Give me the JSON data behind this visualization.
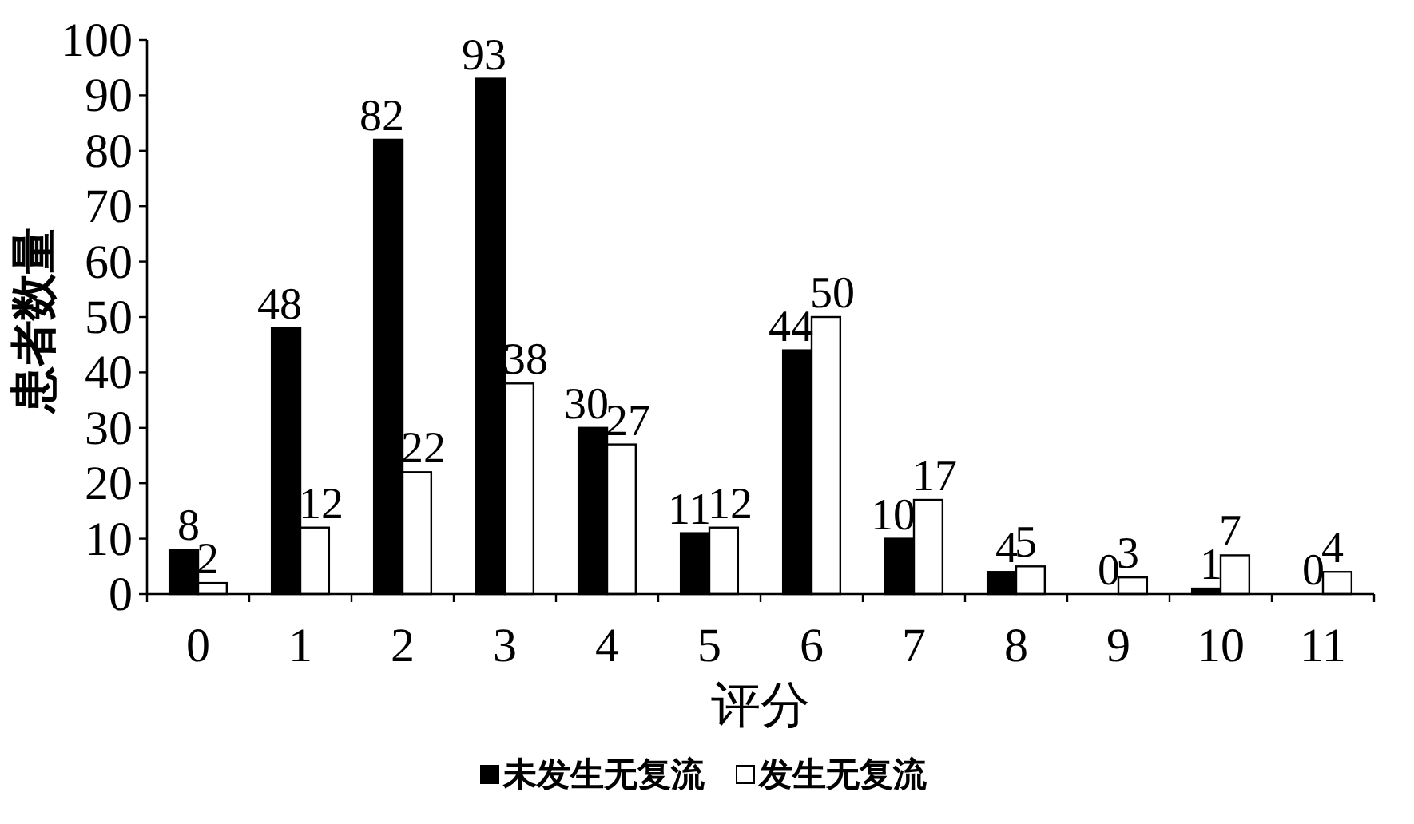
{
  "chart_data": {
    "type": "bar",
    "xlabel": "评分",
    "ylabel": "患者数量",
    "categories": [
      "0",
      "1",
      "2",
      "3",
      "4",
      "5",
      "6",
      "7",
      "8",
      "9",
      "10",
      "11"
    ],
    "series": [
      {
        "name": "未发生无复流",
        "color": "#000000",
        "values": [
          8,
          48,
          82,
          93,
          30,
          11,
          44,
          10,
          4,
          0,
          1,
          0
        ]
      },
      {
        "name": "发生无复流",
        "color": "#ffffff",
        "values": [
          2,
          12,
          22,
          38,
          27,
          12,
          50,
          17,
          5,
          3,
          7,
          4
        ]
      }
    ],
    "ylim": [
      0,
      100
    ],
    "yticks": [
      0,
      10,
      20,
      30,
      40,
      50,
      60,
      70,
      80,
      90,
      100
    ],
    "data_labels": true,
    "legend": "bottom"
  }
}
